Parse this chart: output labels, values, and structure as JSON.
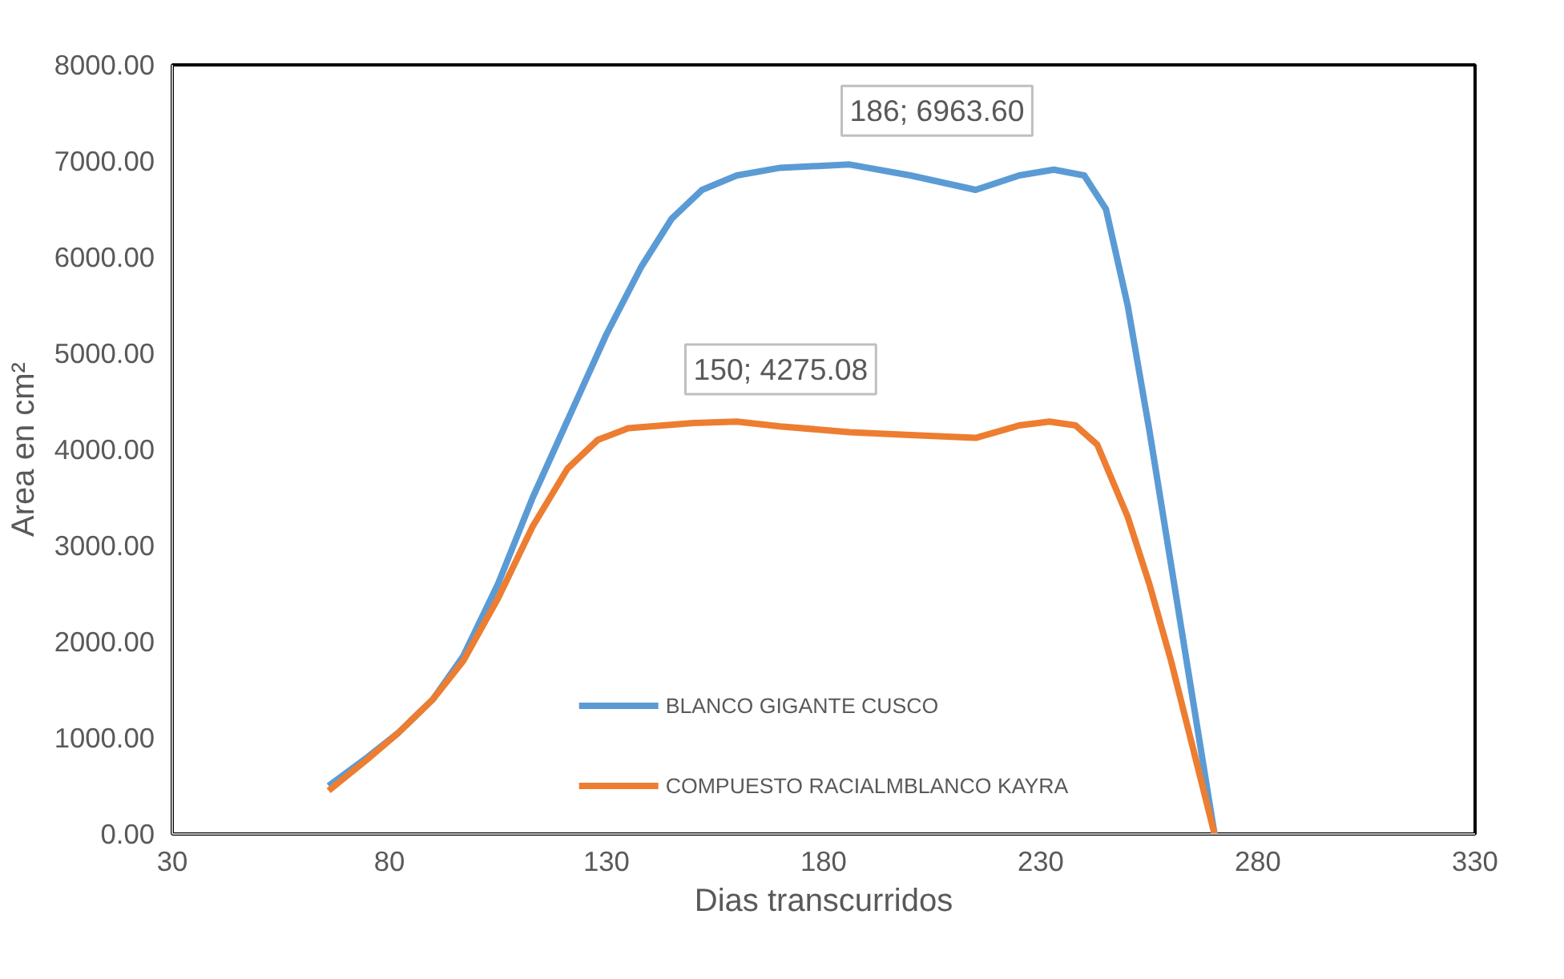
{
  "chart_data": {
    "type": "line",
    "xlabel": "Dias transcurridos",
    "ylabel": "Area en cm²",
    "xlim": [
      30,
      330
    ],
    "xticks": [
      30,
      80,
      130,
      180,
      230,
      280,
      330
    ],
    "ylim": [
      0,
      8000
    ],
    "yticks": [
      {
        "value": 0,
        "label": "0.00"
      },
      {
        "value": 1000,
        "label": "1000.00"
      },
      {
        "value": 2000,
        "label": "2000.00"
      },
      {
        "value": 3000,
        "label": "3000.00"
      },
      {
        "value": 4000,
        "label": "4000.00"
      },
      {
        "value": 5000,
        "label": "5000.00"
      },
      {
        "value": 6000,
        "label": "6000.00"
      },
      {
        "value": 7000,
        "label": "7000.00"
      },
      {
        "value": 8000,
        "label": "8000.00"
      }
    ],
    "grid": false,
    "legend": "bottom",
    "marker": "none",
    "line_style": "solid",
    "series": [
      {
        "name": "BLANCO GIGANTE CUSCO",
        "color": "#5b9bd5",
        "x": [
          66,
          75,
          82,
          90,
          97,
          105,
          113,
          121,
          130,
          138,
          145,
          152,
          160,
          170,
          186,
          200,
          215,
          225,
          233,
          240,
          245,
          250,
          255,
          260,
          265,
          270
        ],
        "values": [
          500,
          800,
          1050,
          1400,
          1850,
          2600,
          3500,
          4300,
          5200,
          5900,
          6400,
          6700,
          6850,
          6930,
          6963.6,
          6850,
          6700,
          6850,
          6910,
          6850,
          6500,
          5500,
          4200,
          2800,
          1400,
          0
        ]
      },
      {
        "name": "COMPUESTO RACIALMBLANCO KAYRA",
        "color": "#ed7d31",
        "x": [
          66,
          75,
          82,
          90,
          97,
          105,
          113,
          121,
          128,
          135,
          150,
          160,
          170,
          186,
          200,
          215,
          225,
          232,
          238,
          243,
          250,
          255,
          260,
          265,
          270
        ],
        "values": [
          450,
          780,
          1050,
          1400,
          1800,
          2450,
          3200,
          3800,
          4100,
          4220,
          4275.08,
          4290,
          4240,
          4180,
          4150,
          4120,
          4250,
          4290,
          4250,
          4050,
          3300,
          2600,
          1800,
          900,
          0
        ]
      }
    ],
    "annotations": [
      {
        "text": "186; 6963.60",
        "x": 186,
        "y": 6963.6
      },
      {
        "text": "150; 4275.08",
        "x": 150,
        "y": 4275.08
      }
    ]
  }
}
